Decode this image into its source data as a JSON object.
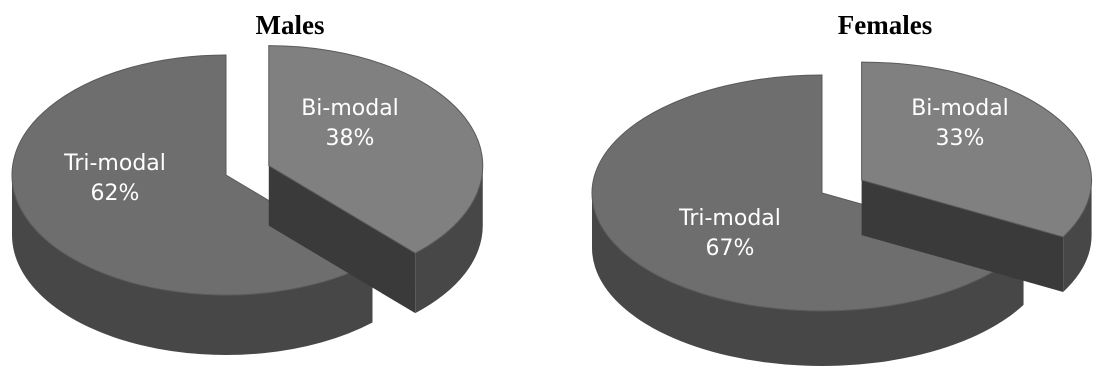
{
  "chart_data": [
    {
      "type": "pie",
      "title": "Males",
      "slices": [
        {
          "label": "Bi-modal",
          "value": 38,
          "value_label": "38%",
          "exploded": true
        },
        {
          "label": "Tri-modal",
          "value": 62,
          "value_label": "62%",
          "exploded": false
        }
      ]
    },
    {
      "type": "pie",
      "title": "Females",
      "slices": [
        {
          "label": "Bi-modal",
          "value": 33,
          "value_label": "33%",
          "exploded": true
        },
        {
          "label": "Tri-modal",
          "value": 67,
          "value_label": "67%",
          "exploded": false
        }
      ]
    }
  ],
  "colors": {
    "bimodal_top": "#808080",
    "trimodal_top": "#6e6e6e",
    "side": "#474747",
    "side_dark": "#3a3a3a"
  }
}
